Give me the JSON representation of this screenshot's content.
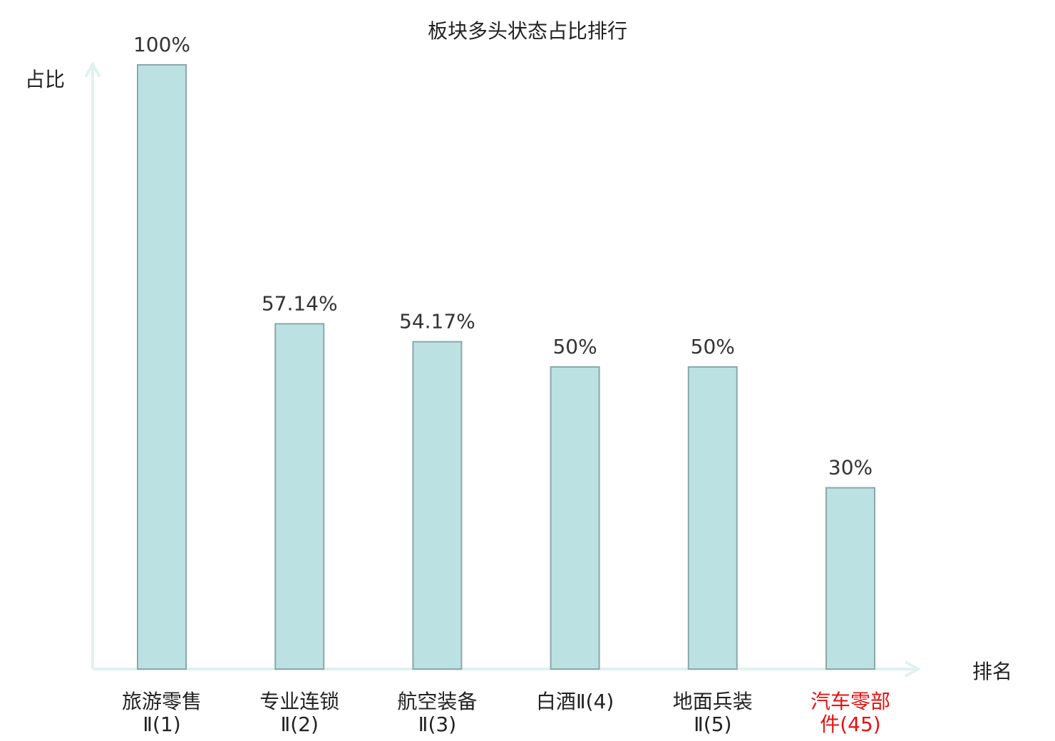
{
  "chart_data": {
    "type": "bar",
    "title": "板块多头状态占比排行",
    "ylabel": "占比",
    "xlabel": "排名",
    "ylim": [
      0,
      100
    ],
    "grid": false,
    "categories": [
      {
        "lines": [
          "旅游零售",
          "Ⅱ(1)"
        ],
        "highlight": false
      },
      {
        "lines": [
          "专业连锁",
          "Ⅱ(2)"
        ],
        "highlight": false
      },
      {
        "lines": [
          "航空装备",
          "Ⅱ(3)"
        ],
        "highlight": false
      },
      {
        "lines": [
          "白酒Ⅱ(4)"
        ],
        "highlight": false
      },
      {
        "lines": [
          "地面兵装",
          "Ⅱ(5)"
        ],
        "highlight": false
      },
      {
        "lines": [
          "汽车零部",
          "件(45)"
        ],
        "highlight": true
      }
    ],
    "values": [
      100,
      57.14,
      54.17,
      50,
      50,
      30
    ],
    "value_labels": [
      "100%",
      "57.14%",
      "54.17%",
      "50%",
      "50%",
      "30%"
    ],
    "colors": {
      "bar_fill": "#bce1e3",
      "bar_stroke": "#8aa8aa",
      "axis": "#dff2f0",
      "text": "#222222",
      "highlight": "#e81010"
    }
  }
}
